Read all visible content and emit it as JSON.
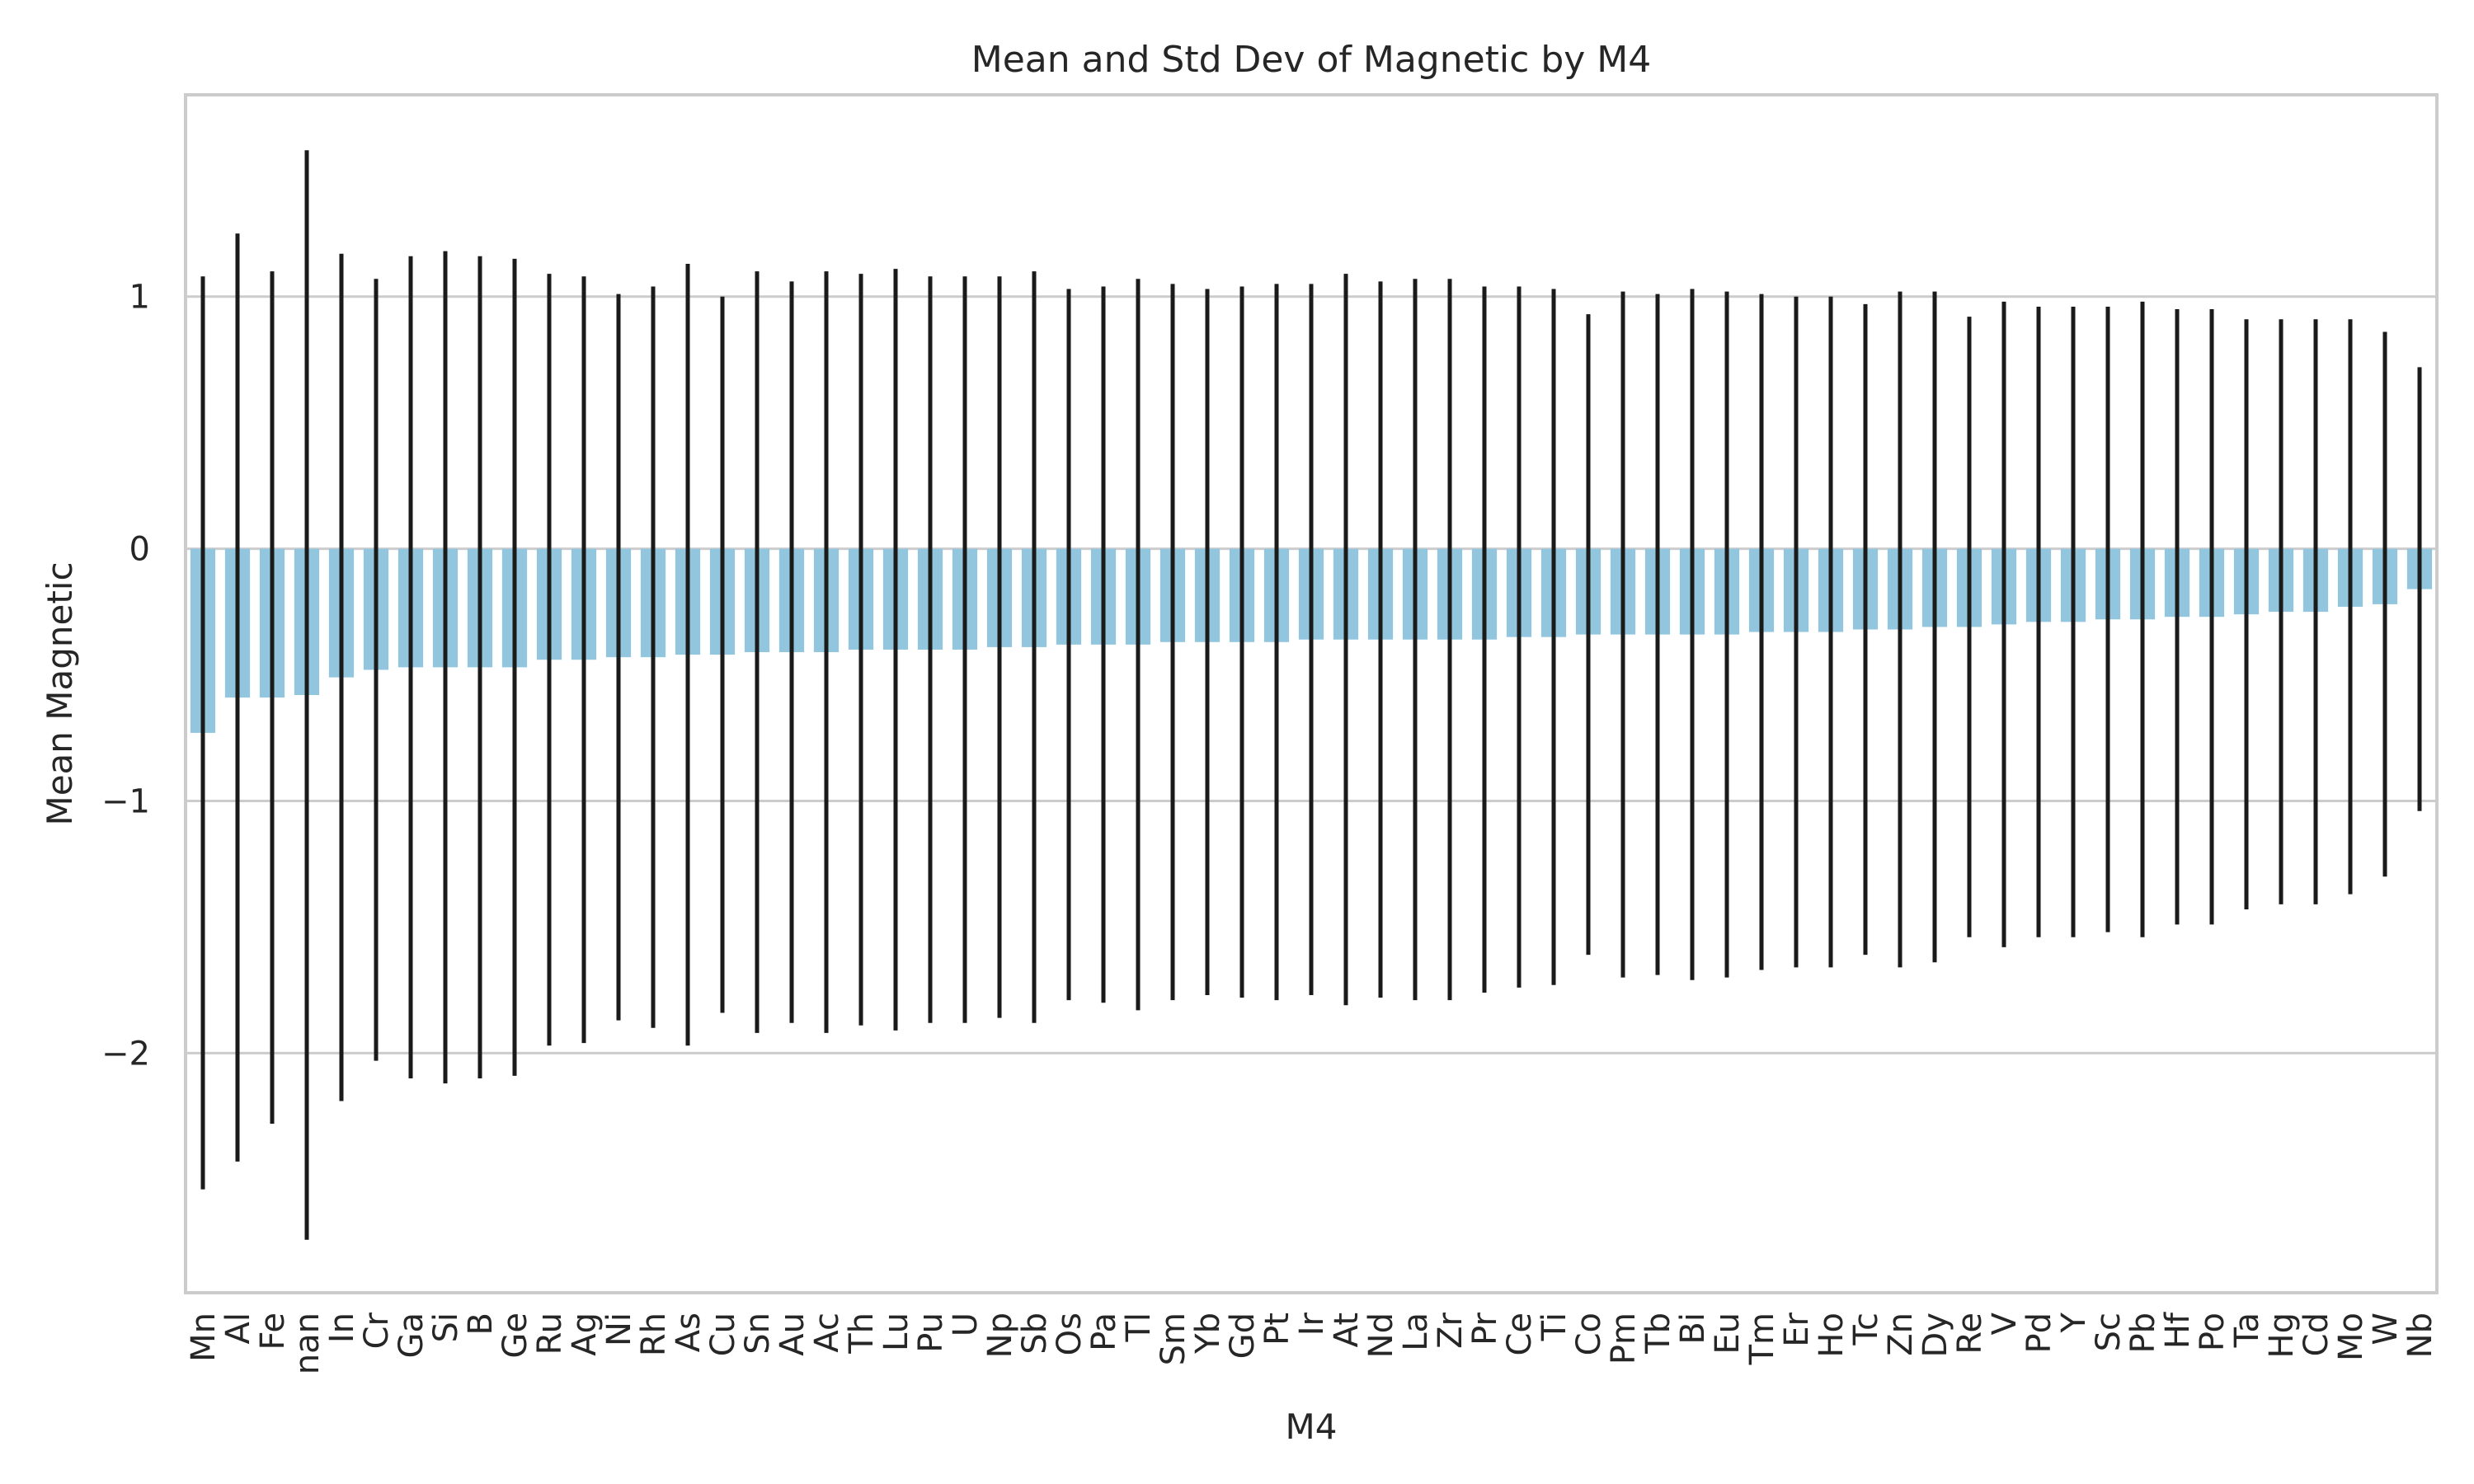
{
  "chart_data": {
    "type": "bar",
    "title": "Mean and Std Dev of Magnetic by M4",
    "xlabel": "M4",
    "ylabel": "Mean Magnetic",
    "ylim": [
      -2.95,
      1.8
    ],
    "yticks": [
      1,
      0,
      -1,
      -2
    ],
    "ytick_labels": [
      "1",
      "0",
      "−1",
      "−2"
    ],
    "grid": true,
    "legend": "none",
    "bar_color": "#92c6df",
    "error_color": "#1a1a1a",
    "categories": [
      "Mn",
      "Al",
      "Fe",
      "nan",
      "In",
      "Cr",
      "Ga",
      "Si",
      "B",
      "Ge",
      "Ru",
      "Ag",
      "Ni",
      "Rh",
      "As",
      "Cu",
      "Sn",
      "Au",
      "Ac",
      "Th",
      "Lu",
      "Pu",
      "U",
      "Np",
      "Sb",
      "Os",
      "Pa",
      "Tl",
      "Sm",
      "Yb",
      "Gd",
      "Pt",
      "Ir",
      "At",
      "Nd",
      "La",
      "Zr",
      "Pr",
      "Ce",
      "Ti",
      "Co",
      "Pm",
      "Tb",
      "Bi",
      "Eu",
      "Tm",
      "Er",
      "Ho",
      "Tc",
      "Zn",
      "Dy",
      "Re",
      "V",
      "Pd",
      "Y",
      "Sc",
      "Pb",
      "Hf",
      "Po",
      "Ta",
      "Hg",
      "Cd",
      "Mo",
      "W",
      "Nb"
    ],
    "values": [
      -0.73,
      -0.59,
      -0.59,
      -0.58,
      -0.51,
      -0.48,
      -0.47,
      -0.47,
      -0.47,
      -0.47,
      -0.44,
      -0.44,
      -0.43,
      -0.43,
      -0.42,
      -0.42,
      -0.41,
      -0.41,
      -0.41,
      -0.4,
      -0.4,
      -0.4,
      -0.4,
      -0.39,
      -0.39,
      -0.38,
      -0.38,
      -0.38,
      -0.37,
      -0.37,
      -0.37,
      -0.37,
      -0.36,
      -0.36,
      -0.36,
      -0.36,
      -0.36,
      -0.36,
      -0.35,
      -0.35,
      -0.34,
      -0.34,
      -0.34,
      -0.34,
      -0.34,
      -0.33,
      -0.33,
      -0.33,
      -0.32,
      -0.32,
      -0.31,
      -0.31,
      -0.3,
      -0.29,
      -0.29,
      -0.28,
      -0.28,
      -0.27,
      -0.27,
      -0.26,
      -0.25,
      -0.25,
      -0.23,
      -0.22,
      -0.16
    ],
    "std": [
      1.81,
      1.84,
      1.69,
      2.16,
      1.68,
      1.55,
      1.63,
      1.65,
      1.63,
      1.62,
      1.53,
      1.52,
      1.44,
      1.47,
      1.55,
      1.42,
      1.51,
      1.47,
      1.51,
      1.49,
      1.51,
      1.48,
      1.48,
      1.47,
      1.49,
      1.41,
      1.42,
      1.45,
      1.42,
      1.4,
      1.41,
      1.42,
      1.41,
      1.45,
      1.42,
      1.43,
      1.43,
      1.4,
      1.39,
      1.38,
      1.27,
      1.36,
      1.35,
      1.37,
      1.36,
      1.34,
      1.33,
      1.33,
      1.29,
      1.34,
      1.33,
      1.23,
      1.28,
      1.25,
      1.25,
      1.24,
      1.26,
      1.22,
      1.22,
      1.17,
      1.16,
      1.16,
      1.14,
      1.08,
      0.88
    ]
  }
}
